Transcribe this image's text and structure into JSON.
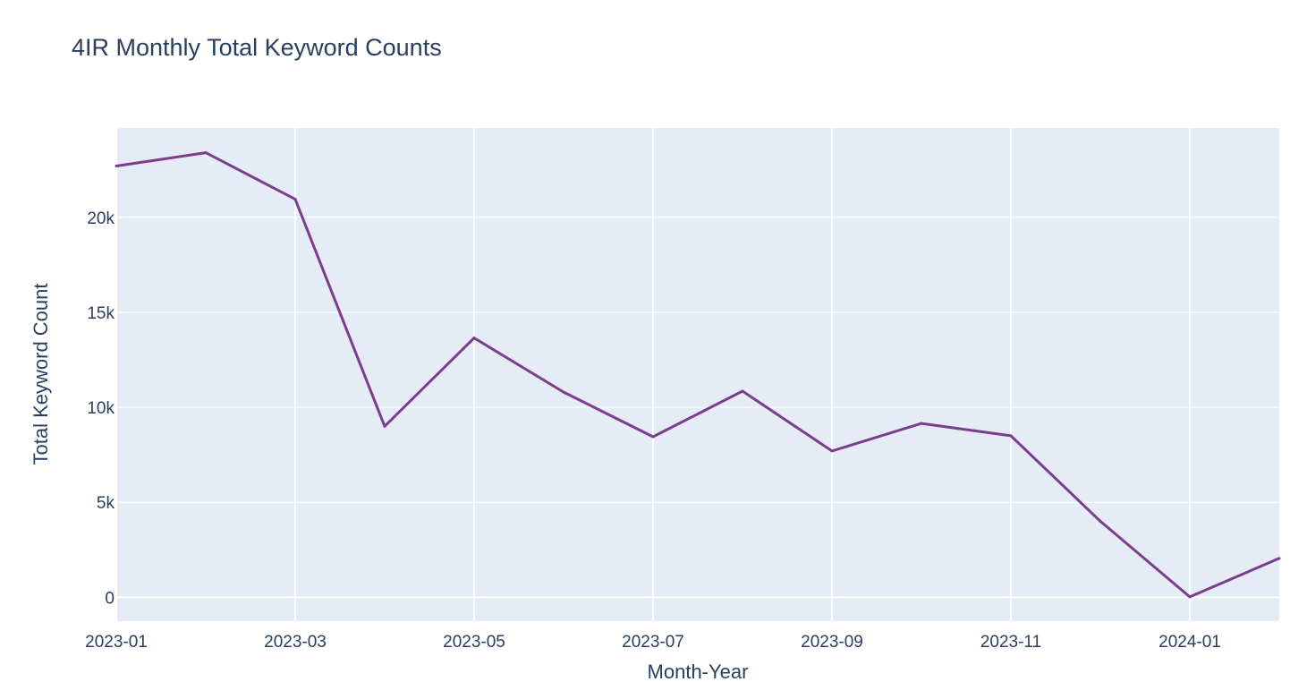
{
  "chart_data": {
    "type": "line",
    "title": "4IR Monthly Total Keyword Counts",
    "xlabel": "Month-Year",
    "ylabel": "Total Keyword Count",
    "x": [
      "2023-01",
      "2023-02",
      "2023-03",
      "2023-04",
      "2023-05",
      "2023-06",
      "2023-07",
      "2023-08",
      "2023-09",
      "2023-10",
      "2023-11",
      "2023-12",
      "2024-01",
      "2024-02"
    ],
    "series": [
      {
        "values": [
          22700,
          23400,
          20950,
          9000,
          13650,
          10800,
          8450,
          10850,
          7700,
          9150,
          8500,
          4000,
          20,
          2050
        ]
      }
    ],
    "xlim": [
      "2023-01",
      "2024-02"
    ],
    "ylim": [
      -1255,
      24700
    ],
    "x_ticks": [
      "2023-01",
      "2023-03",
      "2023-05",
      "2023-07",
      "2023-09",
      "2023-11",
      "2024-01"
    ],
    "y_ticks": [
      0,
      5000,
      10000,
      15000,
      20000
    ],
    "y_tick_labels": [
      "0",
      "5k",
      "10k",
      "15k",
      "20k"
    ],
    "grid": true,
    "colors": {
      "line": "#7a3e8c",
      "plot_background": "#e5ecf6",
      "grid": "#ffffff",
      "text": "#2a3f5f"
    }
  }
}
